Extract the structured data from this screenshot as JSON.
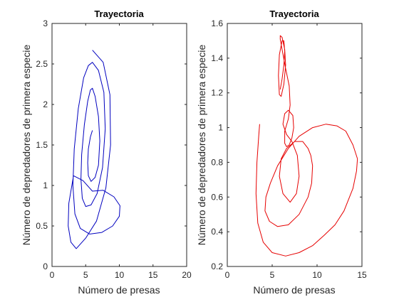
{
  "chart_data": [
    {
      "type": "line",
      "title": "Trayectoria",
      "xlabel": "Número de presas",
      "ylabel": "Número de depredadores de primera especie",
      "xlim": [
        0,
        20
      ],
      "ylim": [
        0,
        3
      ],
      "xticks": [
        "0",
        "5",
        "10",
        "15",
        "20"
      ],
      "yticks": [
        "0",
        "0.5",
        "1",
        "1.5",
        "2",
        "2.5",
        "3"
      ],
      "grid": false,
      "legend": "none",
      "color": "#0000bf",
      "series": [
        {
          "x": [
            6.0,
            7.6,
            8.6,
            8.7,
            8.0,
            6.6,
            5.0,
            3.6,
            2.8,
            2.4,
            2.5,
            3.2,
            4.6,
            6.0,
            7.6,
            9.2,
            10.1,
            10.0,
            9.0,
            7.4,
            5.6,
            4.2,
            3.4,
            3.1,
            3.3,
            3.9,
            4.7,
            5.4,
            6.0,
            6.9,
            7.7,
            7.9,
            7.5,
            6.7,
            5.8,
            5.0,
            4.5,
            4.3,
            4.4,
            4.8,
            5.3,
            5.7,
            6.0,
            6.4,
            6.9,
            7.1,
            6.9,
            6.4,
            5.8,
            5.4,
            5.3,
            5.4,
            5.7,
            6.0
          ],
          "y": [
            2.67,
            2.52,
            2.12,
            1.5,
            0.97,
            0.56,
            0.35,
            0.22,
            0.3,
            0.5,
            0.78,
            1.12,
            1.06,
            0.93,
            0.94,
            0.86,
            0.75,
            0.62,
            0.5,
            0.42,
            0.4,
            0.47,
            0.65,
            1.0,
            1.45,
            1.95,
            2.33,
            2.48,
            2.52,
            2.42,
            2.15,
            1.7,
            1.22,
            0.9,
            0.76,
            0.74,
            0.84,
            1.08,
            1.38,
            1.75,
            2.04,
            2.18,
            2.2,
            2.1,
            1.85,
            1.55,
            1.25,
            1.1,
            1.05,
            1.12,
            1.28,
            1.45,
            1.6,
            1.68
          ]
        }
      ]
    },
    {
      "type": "line",
      "title": "Trayectoria",
      "xlabel": "Número de presas",
      "ylabel": "Número de depredadores de primera especie",
      "xlim": [
        0,
        15
      ],
      "ylim": [
        0.2,
        1.6
      ],
      "xticks": [
        "0",
        "5",
        "10",
        "15"
      ],
      "yticks": [
        "0.2",
        "0.4",
        "0.6",
        "0.8",
        "1",
        "1.2",
        "1.4",
        "1.6"
      ],
      "grid": false,
      "legend": "none",
      "color": "#e60000",
      "series": [
        {
          "x": [
            3.6,
            3.5,
            3.3,
            3.2,
            3.4,
            4.0,
            5.0,
            6.5,
            8.0,
            9.5,
            10.8,
            12.0,
            13.0,
            14.0,
            14.4,
            14.5,
            14.0,
            13.2,
            12.2,
            11.0,
            9.5,
            8.0,
            6.8,
            5.6,
            4.8,
            4.3,
            4.2,
            4.7,
            5.6,
            6.8,
            8.0,
            9.0,
            9.4,
            9.5,
            9.3,
            9.0,
            8.4,
            7.5,
            6.6,
            6.0,
            5.8,
            6.2,
            7.0,
            7.7,
            8.0,
            7.8,
            7.2,
            6.6,
            6.2,
            6.4,
            6.8,
            7.3,
            7.4,
            7.2,
            6.9,
            6.6,
            6.4,
            6.4,
            6.8,
            7.0,
            6.9,
            6.5,
            6.1,
            5.9,
            5.9,
            6.1,
            6.4,
            6.5,
            6.3,
            6.0,
            5.8,
            5.7,
            5.8,
            6.1,
            6.3,
            6.4,
            6.3,
            6.1,
            5.9
          ],
          "y": [
            1.02,
            0.95,
            0.8,
            0.62,
            0.45,
            0.34,
            0.28,
            0.26,
            0.28,
            0.32,
            0.38,
            0.44,
            0.52,
            0.65,
            0.75,
            0.82,
            0.9,
            0.98,
            1.01,
            1.02,
            1.0,
            0.95,
            0.88,
            0.78,
            0.68,
            0.6,
            0.52,
            0.46,
            0.43,
            0.44,
            0.5,
            0.6,
            0.68,
            0.78,
            0.84,
            0.88,
            0.92,
            0.92,
            0.88,
            0.82,
            0.72,
            0.62,
            0.57,
            0.62,
            0.72,
            0.84,
            0.92,
            0.96,
            1.02,
            1.08,
            1.1,
            1.07,
            1.0,
            0.94,
            0.9,
            0.89,
            0.91,
            0.98,
            1.05,
            1.13,
            1.24,
            1.34,
            1.45,
            1.51,
            1.53,
            1.52,
            1.45,
            1.36,
            1.25,
            1.18,
            1.19,
            1.3,
            1.42,
            1.5,
            1.5,
            1.44,
            1.36,
            1.28,
            1.22
          ]
        }
      ]
    }
  ]
}
